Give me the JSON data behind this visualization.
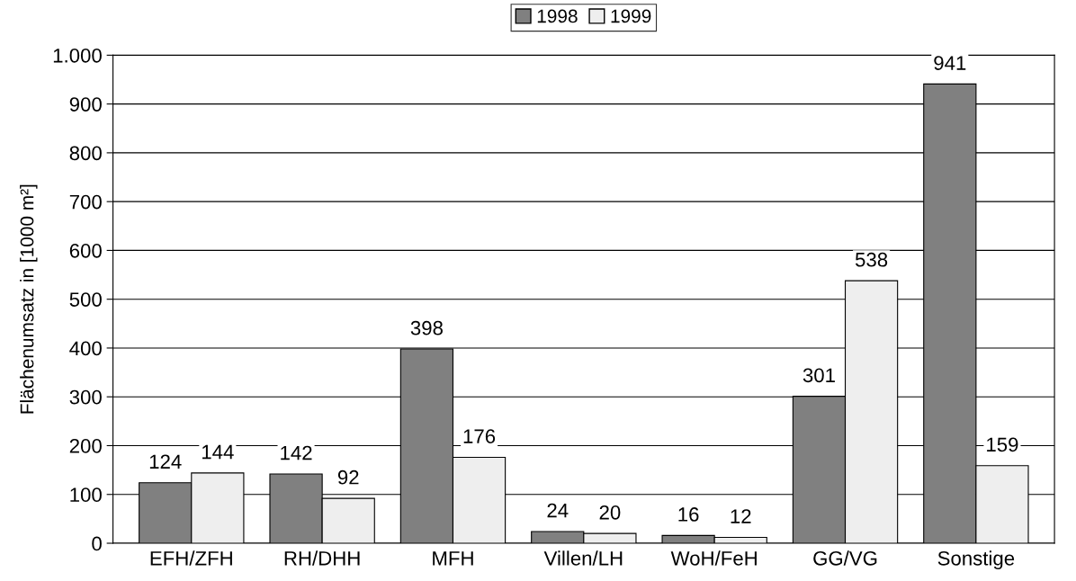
{
  "chart_data": {
    "type": "bar",
    "ylabel": "Flächenumsatz in [1000 m²]",
    "categories": [
      "EFH/ZFH",
      "RH/DHH",
      "MFH",
      "Villen/LH",
      "WoH/FeH",
      "GG/VG",
      "Sonstige"
    ],
    "series": [
      {
        "name": "1998",
        "color": "#808080",
        "values": [
          124,
          142,
          398,
          24,
          16,
          301,
          941
        ]
      },
      {
        "name": "1999",
        "color": "#eeeeee",
        "values": [
          144,
          92,
          176,
          20,
          12,
          538,
          159
        ]
      }
    ],
    "ylim": [
      0,
      1000
    ],
    "yticks": [
      0,
      100,
      200,
      300,
      400,
      500,
      600,
      700,
      800,
      900,
      {
        "value": 1000,
        "label": "1.000"
      }
    ],
    "grid": "y",
    "legend": "top",
    "data_labels": true
  }
}
